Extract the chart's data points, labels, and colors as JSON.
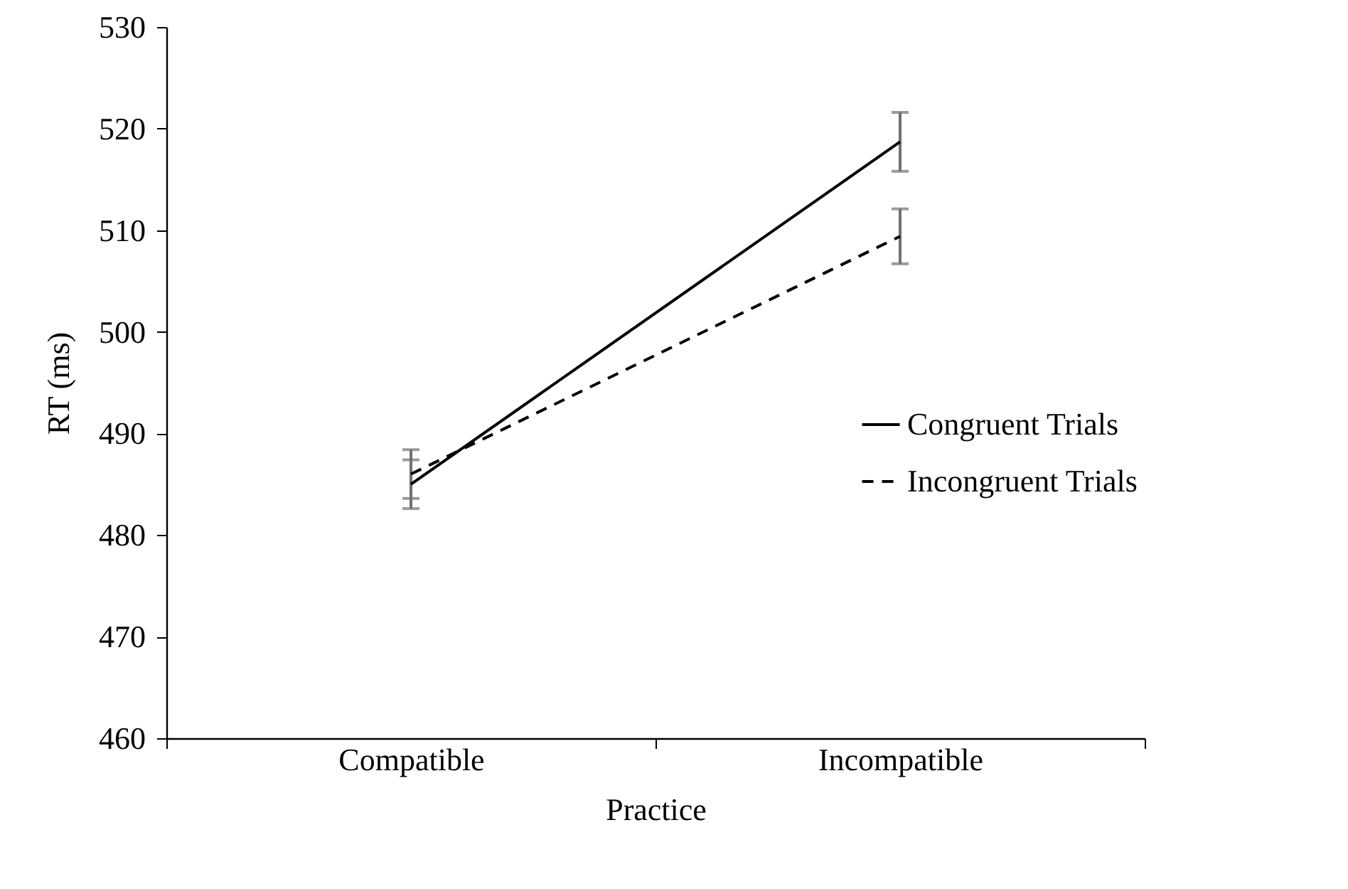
{
  "chart_data": {
    "type": "line",
    "xlabel": "Practice",
    "ylabel": "RT (ms)",
    "categories": [
      "Compatible",
      "Incompatible"
    ],
    "series": [
      {
        "name": "Congruent Trials",
        "color": "#000000",
        "line_style": "solid",
        "values": [
          485,
          518.7
        ],
        "errors": [
          2.4,
          2.9
        ]
      },
      {
        "name": "Incongruent Trials",
        "color": "#000000",
        "line_style": "dashed",
        "values": [
          486,
          509.4
        ],
        "errors": [
          2.4,
          2.7
        ]
      }
    ],
    "ylim": [
      460,
      530
    ],
    "yticks": [
      460,
      470,
      480,
      490,
      500,
      510,
      520,
      530
    ],
    "grid": false,
    "legend": "right",
    "marker": "none"
  }
}
